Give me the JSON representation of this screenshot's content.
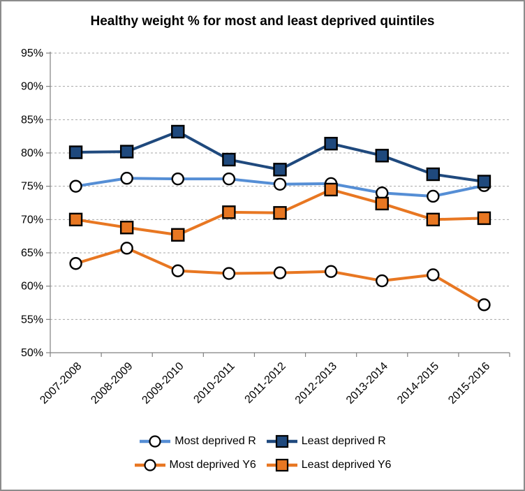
{
  "title": "Healthy weight % for most and least deprived quintiles",
  "colors": {
    "light_blue": "#558ED5",
    "dark_blue": "#1F497D",
    "orange": "#E87722",
    "marker_outline": "#000000",
    "white_marker_fill": "#FFFFFF",
    "gridline": "#A6A6A6",
    "axis": "#808080",
    "text": "#000000",
    "frame_border": "#8C8C8C"
  },
  "y_axis": {
    "tick_labels": [
      "50%",
      "55%",
      "60%",
      "65%",
      "70%",
      "75%",
      "80%",
      "85%",
      "90%",
      "95%"
    ]
  },
  "chart_data": {
    "type": "line",
    "title": "Healthy weight % for most and least deprived quintiles",
    "categories": [
      "2007-2008",
      "2008-2009",
      "2009-2010",
      "2010-2011",
      "2011-2012",
      "2012-2013",
      "2013-2014",
      "2014-2015",
      "2015-2016"
    ],
    "series": [
      {
        "name": "Most deprived R",
        "line_color": "#558ED5",
        "marker": "circle",
        "marker_fill": "#FFFFFF",
        "values": [
          75.0,
          76.2,
          76.1,
          76.1,
          75.3,
          75.4,
          74.0,
          73.5,
          75.1
        ]
      },
      {
        "name": "Least deprived R",
        "line_color": "#1F497D",
        "marker": "square",
        "marker_fill": "#1F497D",
        "values": [
          80.1,
          80.2,
          83.2,
          79.0,
          77.5,
          81.4,
          79.6,
          76.8,
          75.7
        ]
      },
      {
        "name": "Most deprived Y6",
        "line_color": "#E87722",
        "marker": "circle",
        "marker_fill": "#FFFFFF",
        "values": [
          63.4,
          65.7,
          62.3,
          61.9,
          62.0,
          62.2,
          60.8,
          61.7,
          57.2
        ]
      },
      {
        "name": "Least deprived Y6",
        "line_color": "#E87722",
        "marker": "square",
        "marker_fill": "#E87722",
        "values": [
          70.0,
          68.8,
          67.7,
          71.1,
          71.0,
          74.5,
          72.4,
          70.0,
          70.2
        ]
      }
    ],
    "xlabel": "",
    "ylabel": "",
    "ylim": [
      50,
      95
    ],
    "ytick_step": 5,
    "ytick_format": "percent",
    "grid": "horizontal-dashed",
    "x_labels_rotation_deg": 45,
    "legend_position": "bottom",
    "legend_rows": [
      [
        "Most deprived R",
        "Least deprived R"
      ],
      [
        "Most deprived Y6",
        "Least deprived Y6"
      ]
    ]
  }
}
